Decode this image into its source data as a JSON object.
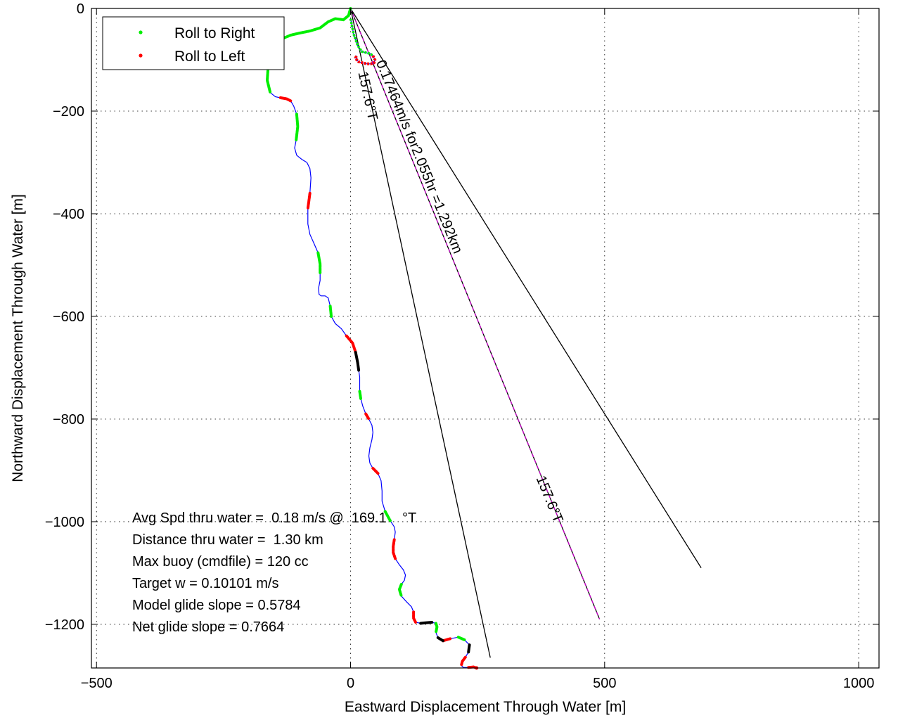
{
  "chart_data": {
    "type": "line",
    "xlabel": "Eastward Displacement Through Water [m]",
    "ylabel": "Northward Displacement Through Water [m]",
    "xlim": [
      -510,
      1040
    ],
    "ylim": [
      -1285,
      0
    ],
    "xticks": [
      -500,
      0,
      500,
      1000
    ],
    "yticks": [
      0,
      -200,
      -400,
      -600,
      -800,
      -1000,
      -1200
    ],
    "grid": true,
    "legend": {
      "placement": "top-left",
      "entries": [
        {
          "label": "Roll to Right",
          "color": "#00ee00"
        },
        {
          "label": "Roll to Left",
          "color": "#ff0000"
        }
      ]
    },
    "colors": {
      "track": "#0000ff",
      "right": "#00ee00",
      "left": "#ff0000",
      "neutral": "#000000",
      "current": "#cc00cc"
    },
    "track": {
      "x": [
        0,
        -4,
        -14,
        -30,
        -44,
        -60,
        -80,
        -100,
        -118,
        -132,
        -142,
        -150,
        -158,
        -162,
        -164,
        -158,
        -148,
        -138,
        -126,
        -118,
        -112,
        -106,
        -104,
        -107,
        -110,
        -106,
        -96,
        -86,
        -80,
        -78,
        -80,
        -84,
        -84,
        -80,
        -72,
        -64,
        -60,
        -60,
        -60,
        -63,
        -62,
        -58,
        -50,
        -44,
        -40,
        -38,
        -30,
        -18,
        -8,
        4,
        10,
        14,
        16,
        18,
        18,
        18,
        20,
        24,
        30,
        36,
        42,
        44,
        42,
        38,
        36,
        38,
        44,
        54,
        60,
        62,
        62,
        68,
        78,
        86,
        88,
        86,
        84,
        84,
        88,
        96,
        104,
        108,
        106,
        100,
        96,
        100,
        110,
        120,
        124,
        124,
        128,
        138,
        148,
        160,
        168,
        170,
        168,
        172,
        182,
        196,
        212,
        224,
        234,
        232,
        226,
        220,
        218,
        222,
        232,
        242,
        248
      ],
      "y": [
        0,
        -14,
        -22,
        -20,
        -26,
        -38,
        -44,
        -48,
        -52,
        -58,
        -66,
        -74,
        -90,
        -110,
        -140,
        -164,
        -172,
        -174,
        -176,
        -180,
        -190,
        -206,
        -230,
        -256,
        -272,
        -286,
        -294,
        -300,
        -312,
        -330,
        -360,
        -390,
        -420,
        -440,
        -458,
        -476,
        -498,
        -515,
        -530,
        -545,
        -557,
        -560,
        -560,
        -564,
        -580,
        -600,
        -614,
        -624,
        -638,
        -652,
        -670,
        -690,
        -705,
        -718,
        -732,
        -746,
        -760,
        -775,
        -790,
        -800,
        -812,
        -826,
        -840,
        -856,
        -872,
        -886,
        -896,
        -906,
        -920,
        -940,
        -960,
        -980,
        -998,
        -1010,
        -1020,
        -1035,
        -1048,
        -1060,
        -1072,
        -1084,
        -1094,
        -1104,
        -1114,
        -1122,
        -1132,
        -1145,
        -1156,
        -1166,
        -1176,
        -1188,
        -1196,
        -1198,
        -1197,
        -1196,
        -1198,
        -1205,
        -1216,
        -1226,
        -1232,
        -1228,
        -1225,
        -1230,
        -1240,
        -1254,
        -1264,
        -1272,
        -1280,
        -1284,
        -1284,
        -1283,
        -1285
      ]
    },
    "roll_right": [
      {
        "from": 0,
        "to": 10
      },
      {
        "from": 13,
        "to": 15
      },
      {
        "from": 21,
        "to": 23
      },
      {
        "from": 35,
        "to": 37
      },
      {
        "from": 44,
        "to": 45
      },
      {
        "from": 55,
        "to": 56
      },
      {
        "from": 71,
        "to": 72
      },
      {
        "from": 83,
        "to": 85
      },
      {
        "from": 94,
        "to": 96
      },
      {
        "from": 100,
        "to": 101
      }
    ],
    "roll_left": [
      {
        "from": 17,
        "to": 19
      },
      {
        "from": 30,
        "to": 31
      },
      {
        "from": 48,
        "to": 50
      },
      {
        "from": 58,
        "to": 59
      },
      {
        "from": 66,
        "to": 67
      },
      {
        "from": 75,
        "to": 78
      },
      {
        "from": 88,
        "to": 90
      },
      {
        "from": 98,
        "to": 99
      },
      {
        "from": 104,
        "to": 106
      },
      {
        "from": 108,
        "to": 110
      }
    ],
    "roll_neutral": [
      {
        "from": 50,
        "to": 52
      },
      {
        "from": 91,
        "to": 93
      },
      {
        "from": 97,
        "to": 98
      },
      {
        "from": 102,
        "to": 103
      }
    ],
    "loop_points": {
      "x": [
        0,
        2,
        6,
        14,
        22,
        30,
        38,
        44,
        48,
        46,
        40,
        32,
        24,
        16,
        12,
        10,
        12
      ],
      "y": [
        -20,
        -30,
        -50,
        -72,
        -84,
        -86,
        -88,
        -92,
        -100,
        -106,
        -108,
        -108,
        -106,
        -104,
        -100,
        -96,
        -92
      ]
    },
    "lines": [
      {
        "name": "",
        "x": [
          0,
          275
        ],
        "y": [
          0,
          -1265
        ],
        "label": "157.6°T"
      },
      {
        "name": "",
        "x": [
          0,
          490
        ],
        "y": [
          0,
          -1190
        ],
        "label": "0.17464m/s for2.055hr =1.292km"
      },
      {
        "name": "",
        "x": [
          0,
          690
        ],
        "y": [
          0,
          -1090
        ],
        "label": ""
      }
    ],
    "extra_label": {
      "text": "157.6°T",
      "x": 365,
      "y": -915
    },
    "annotations": [
      "Avg Spd thru water =  0.18 m/s @  169.1    °T",
      "Distance thru water =  1.30 km",
      "Max buoy (cmdfile) = 120 cc",
      "Target w = 0.10101 m/s",
      "Model glide slope = 0.5784",
      "Net glide slope = 0.7664"
    ]
  }
}
